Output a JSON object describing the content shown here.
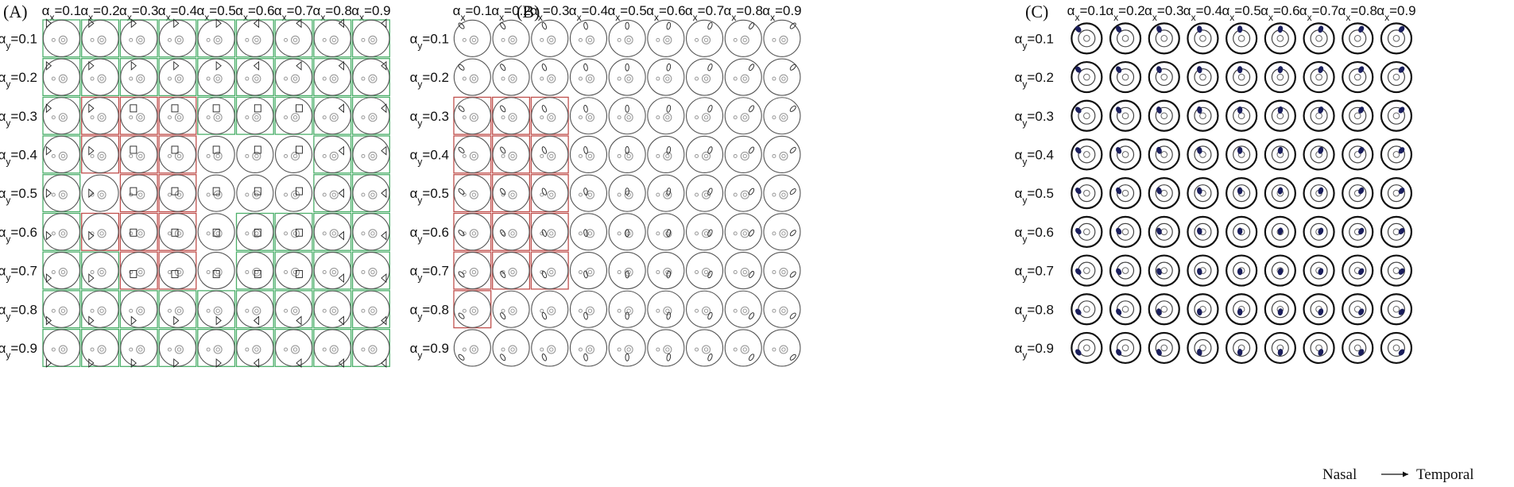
{
  "panels": [
    {
      "letter": "(A)",
      "col_labels": [
        "0.1",
        "0.2",
        "0.3",
        "0.4",
        "0.5",
        "0.6",
        "0.7",
        "0.8",
        "0.9"
      ],
      "row_labels": [
        "0.1",
        "0.2",
        "0.3",
        "0.4",
        "0.5",
        "0.6",
        "0.7",
        "0.8",
        "0.9"
      ],
      "cell_status": [
        "GGGGGGGGG",
        "GGGGGGGGG",
        "GRRRGGGGG",
        "GRRR...GG",
        "G.RR...GG",
        "GRRR.GGGG",
        "GGRR.GGGG",
        "GGGGGGGGG",
        "GGGGGGGGG"
      ]
    },
    {
      "letter": "(B)",
      "col_labels": [
        "0.1",
        "0.2",
        "0.3",
        "0.4",
        "0.5",
        "0.6",
        "0.7",
        "0.8",
        "0.9"
      ],
      "row_labels": [
        "0.1",
        "0.2",
        "0.3",
        "0.4",
        "0.5",
        "0.6",
        "0.7",
        "0.8",
        "0.9"
      ],
      "cell_status": [
        ".........",
        ".........",
        "RRR......",
        "RRR......",
        "RRR......",
        "RRR......",
        "RRR......",
        "R........",
        "........."
      ]
    },
    {
      "letter": "(C)",
      "col_labels": [
        "0.1",
        "0.2",
        "0.3",
        "0.4",
        "0.5",
        "0.6",
        "0.7",
        "0.8",
        "0.9"
      ],
      "row_labels": [
        "0.1",
        "0.2",
        "0.3",
        "0.4",
        "0.5",
        "0.6",
        "0.7",
        "0.8",
        "0.9"
      ]
    }
  ],
  "axis_symbols": {
    "alpha": "α",
    "x_sub": "x",
    "y_sub": "y",
    "equals": "="
  },
  "caption": {
    "left": "Nasal",
    "right": "Temporal"
  },
  "colors": {
    "green_frame": "#4caf6a",
    "red_frame": "#c0504d",
    "circle": "#555555",
    "inner": "#999999",
    "blob": "#1b1f5c",
    "text": "#111111"
  }
}
